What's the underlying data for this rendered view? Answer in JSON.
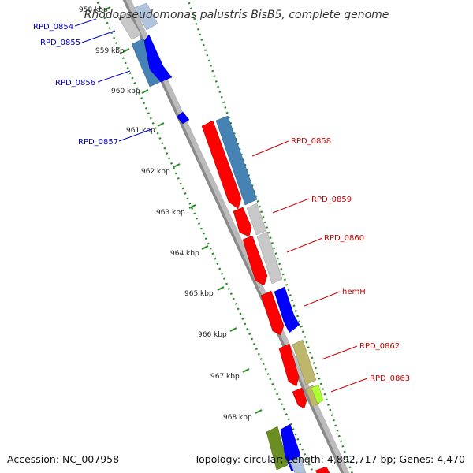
{
  "title": "Rhodopseudomonas palustris BisB5, complete genome",
  "footer": {
    "accession": "Accession: NC_007958",
    "topology": "Topology: circular; Length: 4,892,717 bp; Genes: 4,470"
  },
  "ticks": [
    "958 kbp",
    "959 kbp",
    "960 kbp",
    "961 kbp",
    "962 kbp",
    "963 kbp",
    "964 kbp",
    "965 kbp",
    "966 kbp",
    "967 kbp",
    "968 kbp"
  ],
  "genes_reverse": [
    "RPD_0854",
    "RPD_0855",
    "RPD_0856",
    "RPD_0857"
  ],
  "genes_forward": [
    "RPD_0858",
    "RPD_0859",
    "RPD_0860",
    "hemH",
    "RPD_0862",
    "RPD_0863"
  ],
  "colors": {
    "cds": "#ff0000",
    "cds_reverse": "#0000ff",
    "steelblue": "#4682b4",
    "gray": "#bfbfbf",
    "khaki": "#b8b078",
    "green": "#6b8e23",
    "yellowgreen": "#9acd32",
    "forward_label": "#cc0000",
    "reverse_label": "#0000cc",
    "dotted": "#228b22"
  }
}
